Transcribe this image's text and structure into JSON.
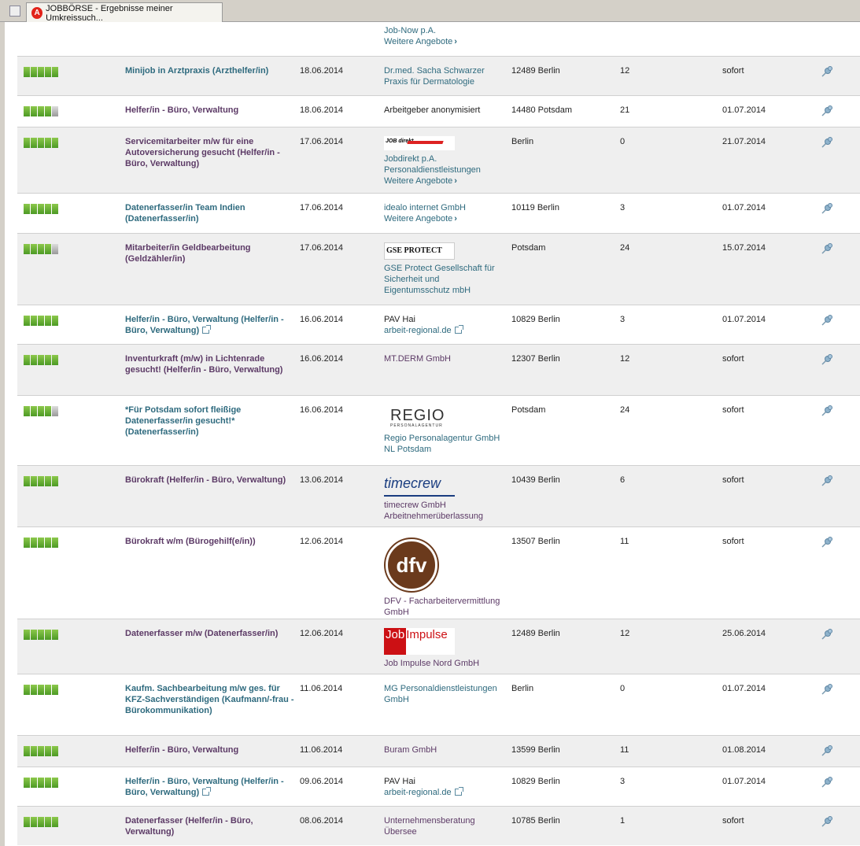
{
  "tab": {
    "title": "JOBBÖRSE - Ergebnisse meiner Umkreissuch..."
  },
  "top_partial": {
    "employer": [
      "Job-Now p.A."
    ],
    "more": "Weitere Angebote"
  },
  "rows": [
    {
      "rating": 5,
      "title": "Minijob in Arztpraxis (Arzthelfer/in)",
      "title_color": "teal",
      "date": "18.06.2014",
      "employer": [
        "Dr.med. Sacha Schwarzer",
        "Praxis für Dermatologie"
      ],
      "employer_color": "teal",
      "location": "12489 Berlin",
      "distance": "12",
      "start": "sofort"
    },
    {
      "rating": 4,
      "title": "Helfer/in - Büro, Verwaltung",
      "title_color": "purple",
      "date": "18.06.2014",
      "employer": [
        "Arbeitgeber anonymisiert"
      ],
      "employer_color": "black",
      "location": "14480 Potsdam",
      "distance": "21",
      "start": "01.07.2014"
    },
    {
      "rating": 5,
      "title": "Servicemitarbeiter m/w für eine Autoversicherung gesucht (Helfer/in - Büro, Verwaltung)",
      "title_color": "purple",
      "date": "17.06.2014",
      "logo": "jobdirekt",
      "logo_text": "JOB direkt",
      "employer": [
        "Jobdirekt p.A.",
        "Personaldienstleistungen"
      ],
      "employer_color": "teal",
      "more": "Weitere Angebote",
      "location": "Berlin",
      "distance": "0",
      "start": "21.07.2014"
    },
    {
      "rating": 5,
      "title": "Datenerfasser/in Team Indien (Datenerfasser/in)",
      "title_color": "teal",
      "date": "17.06.2014",
      "employer": [
        "idealo internet GmbH"
      ],
      "employer_color": "teal",
      "more": "Weitere Angebote",
      "location": "10119 Berlin",
      "distance": "3",
      "start": "01.07.2014"
    },
    {
      "rating": 4,
      "title": "Mitarbeiter/in Geldbearbeitung (Geldzähler/in)",
      "title_color": "purple",
      "date": "17.06.2014",
      "logo": "gse",
      "logo_text": "GSE PROTECT",
      "employer": [
        "GSE Protect Gesellschaft für",
        "Sicherheit und",
        "Eigentumsschutz mbH"
      ],
      "employer_color": "teal",
      "location": "Potsdam",
      "distance": "24",
      "start": "15.07.2014"
    },
    {
      "rating": 5,
      "title": "Helfer/in - Büro, Verwaltung (Helfer/in - Büro, Verwaltung)",
      "title_color": "teal",
      "external": true,
      "date": "16.06.2014",
      "employer": [
        "PAV Hai"
      ],
      "employer_color": "black",
      "source": "arbeit-regional.de",
      "location": "10829 Berlin",
      "distance": "3",
      "start": "01.07.2014"
    },
    {
      "rating": 5,
      "title": "Inventurkraft (m/w) in Lichtenrade gesucht! (Helfer/in - Büro, Verwaltung)",
      "title_color": "purple",
      "date": "16.06.2014",
      "employer": [
        "MT.DERM GmbH"
      ],
      "employer_color": "purple",
      "location": "12307 Berlin",
      "distance": "12",
      "start": "sofort"
    },
    {
      "rating": 4,
      "title": "*Für Potsdam sofort fleißige Datenerfasser/in gesucht!* (Datenerfasser/in)",
      "title_color": "teal",
      "date": "16.06.2014",
      "logo": "regio",
      "logo_text": "REGIO",
      "logo_sub": "PERSONALAGENTUR",
      "employer": [
        "Regio Personalagentur GmbH",
        "NL Potsdam"
      ],
      "employer_color": "teal",
      "location": "Potsdam",
      "distance": "24",
      "start": "sofort"
    },
    {
      "rating": 5,
      "title": "Bürokraft (Helfer/in - Büro, Verwaltung)",
      "title_color": "purple",
      "date": "13.06.2014",
      "logo": "timecrew",
      "logo_text": "timecrew",
      "employer": [
        "timecrew GmbH",
        "Arbeitnehmerüberlassung"
      ],
      "employer_color": "purple",
      "location": "10439 Berlin",
      "distance": "6",
      "start": "sofort"
    },
    {
      "rating": 5,
      "title": "Bürokraft w/m (Bürogehilf(e/in))",
      "title_color": "purple",
      "date": "12.06.2014",
      "logo": "dfv",
      "logo_text": "dfv",
      "employer": [
        "DFV - Facharbeitervermittlung",
        "GmbH"
      ],
      "employer_color": "purple",
      "location": "13507 Berlin",
      "distance": "11",
      "start": "sofort"
    },
    {
      "rating": 5,
      "title": "Datenerfasser m/w (Datenerfasser/in)",
      "title_color": "purple",
      "date": "12.06.2014",
      "logo": "jobimpulse",
      "logo_text": "Job",
      "logo_sub": "Impulse",
      "employer": [
        "Job Impulse Nord GmbH"
      ],
      "employer_color": "purple",
      "location": "12489 Berlin",
      "distance": "12",
      "start": "25.06.2014"
    },
    {
      "rating": 5,
      "title": "Kaufm. Sachbearbeitung m/w ges. für KFZ-Sachverständigen (Kaufmann/-frau - Bürokommunikation)",
      "title_color": "teal",
      "date": "11.06.2014",
      "employer": [
        "MG Personaldienstleistungen",
        "GmbH"
      ],
      "employer_color": "teal",
      "location": "Berlin",
      "distance": "0",
      "start": "01.07.2014"
    },
    {
      "rating": 5,
      "title": "Helfer/in - Büro, Verwaltung",
      "title_color": "purple",
      "date": "11.06.2014",
      "employer": [
        "Buram GmbH"
      ],
      "employer_color": "purple",
      "location": "13599 Berlin",
      "distance": "11",
      "start": "01.08.2014"
    },
    {
      "rating": 5,
      "title": "Helfer/in - Büro, Verwaltung (Helfer/in - Büro, Verwaltung)",
      "title_color": "teal",
      "external": true,
      "date": "09.06.2014",
      "employer": [
        "PAV Hai"
      ],
      "employer_color": "black",
      "source": "arbeit-regional.de",
      "location": "10829 Berlin",
      "distance": "3",
      "start": "01.07.2014"
    },
    {
      "rating": 5,
      "title": "Datenerfasser (Helfer/in - Büro, Verwaltung)",
      "title_color": "purple",
      "date": "08.06.2014",
      "employer": [
        "Unternehmensberatung",
        "Übersee"
      ],
      "employer_color": "purple",
      "location": "10785 Berlin",
      "distance": "1",
      "start": "sofort"
    }
  ]
}
